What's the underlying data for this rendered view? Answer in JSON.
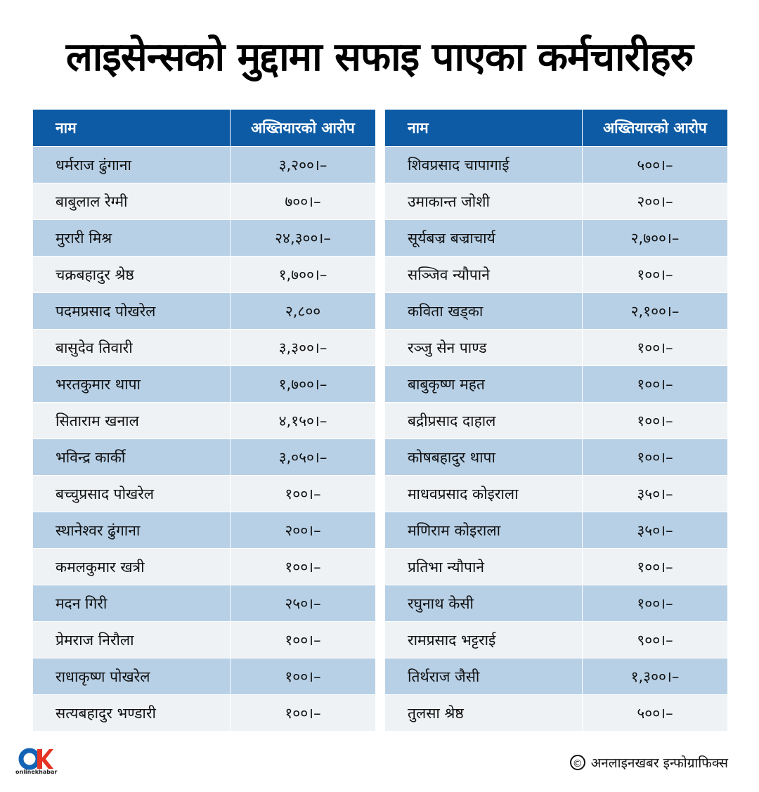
{
  "title": "लाइसेन्सको मुद्दामा सफाइ पाएका कर्मचारीहरु",
  "headers": {
    "name": "नाम",
    "charge": "अख्तियारको आरोप"
  },
  "left_rows": [
    {
      "name": "धर्मराज ढुंगाना",
      "value": "३,२००।–"
    },
    {
      "name": "बाबुलाल रेग्मी",
      "value": "७००।–"
    },
    {
      "name": "मुरारी मिश्र",
      "value": "२४,३००।–"
    },
    {
      "name": "चक्रबहादुर श्रेष्ठ",
      "value": "१,७००।–"
    },
    {
      "name": "पदमप्रसाद पोखरेल",
      "value": "२,८००"
    },
    {
      "name": "बासुदेव तिवारी",
      "value": "३,३००।–"
    },
    {
      "name": "भरतकुमार थापा",
      "value": "१,७००।–"
    },
    {
      "name": "सिताराम खनाल",
      "value": "४,१५०।–"
    },
    {
      "name": "भविन्द्र कार्की",
      "value": "३,०५०।–"
    },
    {
      "name": "बच्चुप्रसाद पोखरेल",
      "value": "१००।–"
    },
    {
      "name": "स्थानेश्वर ढुंगाना",
      "value": "२००।–"
    },
    {
      "name": "कमलकुमार खत्री",
      "value": "१००।–"
    },
    {
      "name": "मदन गिरी",
      "value": "२५०।–"
    },
    {
      "name": "प्रेमराज निरौला",
      "value": "१००।–"
    },
    {
      "name": "राधाकृष्ण पोखरेल",
      "value": "१००।–"
    },
    {
      "name": "सत्यबहादुर भण्डारी",
      "value": "१००।–"
    }
  ],
  "right_rows": [
    {
      "name": "शिवप्रसाद चापागाई",
      "value": "५००।–"
    },
    {
      "name": "उमाकान्त जोशी",
      "value": "२००।–"
    },
    {
      "name": "सूर्यबज्र बज्राचार्य",
      "value": "२,७००।–"
    },
    {
      "name": "सञ्जिव न्यौपाने",
      "value": "१००।–"
    },
    {
      "name": "कविता खड्का",
      "value": "२,१००।–"
    },
    {
      "name": "रञ्जु सेन पाण्ड",
      "value": "१००।–"
    },
    {
      "name": "बाबुकृष्ण महत",
      "value": "१००।–"
    },
    {
      "name": "बद्रीप्रसाद दाहाल",
      "value": "१००।–"
    },
    {
      "name": "कोषबहादुर थापा",
      "value": "१००।–"
    },
    {
      "name": "माधवप्रसाद कोइराला",
      "value": "३५०।–"
    },
    {
      "name": "मणिराम कोइराला",
      "value": "३५०।–"
    },
    {
      "name": "प्रतिभा न्यौपाने",
      "value": "१००।–"
    },
    {
      "name": "रघुनाथ केसी",
      "value": "१००।–"
    },
    {
      "name": "रामप्रसाद भट्टराई",
      "value": "९००।–"
    },
    {
      "name": "तिर्थराज जैसी",
      "value": "१,३००।–"
    },
    {
      "name": "तुलसा श्रेष्ठ",
      "value": "५००।–"
    }
  ],
  "footer": {
    "logo_text": "onlinekhabar",
    "copyright_symbol": "©",
    "credit": "अनलाइनखबर इन्फोग्राफिक्स"
  },
  "colors": {
    "header_bg": "#0d5ba5",
    "row_odd": "#b7d0e6",
    "row_even": "#eff2f5",
    "logo_blue": "#1363b5",
    "logo_red": "#e53424"
  }
}
